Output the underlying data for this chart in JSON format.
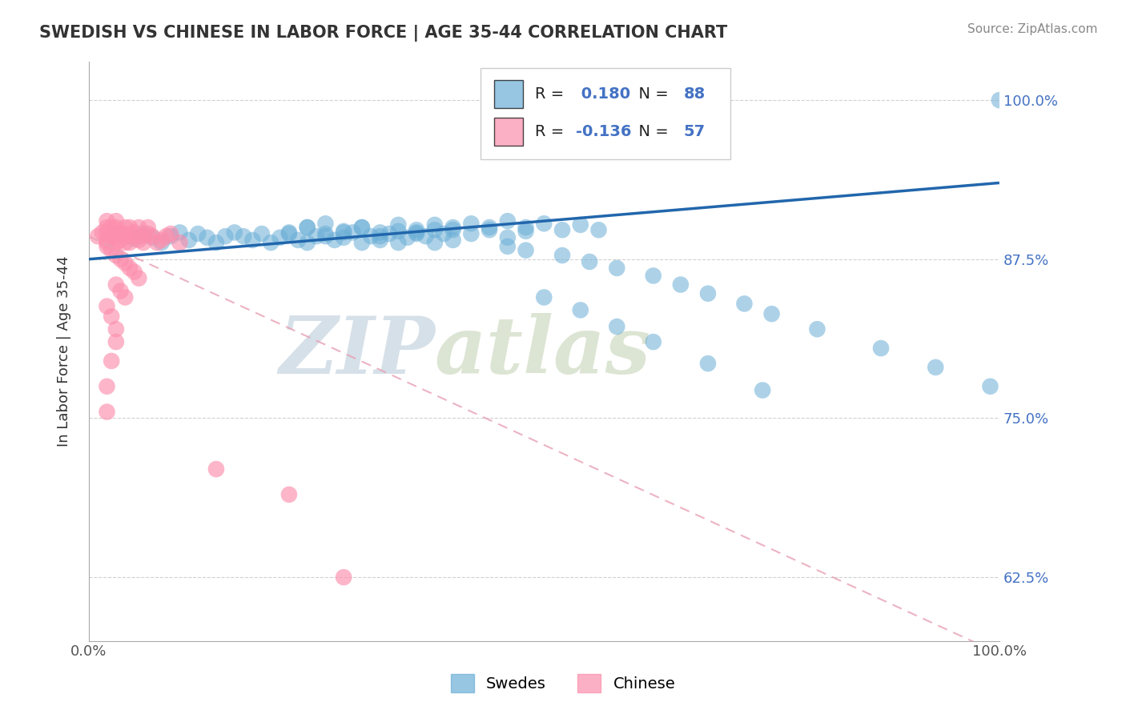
{
  "title": "SWEDISH VS CHINESE IN LABOR FORCE | AGE 35-44 CORRELATION CHART",
  "source": "Source: ZipAtlas.com",
  "ylabel": "In Labor Force | Age 35-44",
  "xlim": [
    0.0,
    1.0
  ],
  "ylim": [
    0.575,
    1.03
  ],
  "yticks": [
    0.625,
    0.75,
    0.875,
    1.0
  ],
  "ytick_labels": [
    "62.5%",
    "75.0%",
    "87.5%",
    "100.0%"
  ],
  "swedes_R": 0.18,
  "swedes_N": 88,
  "chinese_R": -0.136,
  "chinese_N": 57,
  "swedes_color": "#6baed6",
  "chinese_color": "#fc8fad",
  "swedes_trend_color": "#2166ac",
  "chinese_trend_color": "#e8a0b4",
  "legend_swedes": "Swedes",
  "legend_chinese": "Chinese",
  "watermark": "ZIPatlas",
  "watermark_color_zip": "#b8cfe0",
  "watermark_color_atlas": "#c8d8a8",
  "background_color": "#ffffff",
  "sw_trend_start_y": 0.875,
  "sw_trend_end_y": 0.935,
  "ch_trend_start_y": 0.893,
  "ch_trend_end_y": 0.565,
  "swedes_x": [
    0.05,
    0.06,
    0.07,
    0.08,
    0.09,
    0.1,
    0.11,
    0.12,
    0.13,
    0.14,
    0.15,
    0.16,
    0.17,
    0.18,
    0.19,
    0.2,
    0.21,
    0.22,
    0.23,
    0.24,
    0.25,
    0.26,
    0.27,
    0.28,
    0.29,
    0.3,
    0.31,
    0.32,
    0.33,
    0.34,
    0.35,
    0.36,
    0.37,
    0.38,
    0.39,
    0.4,
    0.22,
    0.24,
    0.26,
    0.28,
    0.3,
    0.32,
    0.34,
    0.36,
    0.38,
    0.4,
    0.42,
    0.44,
    0.46,
    0.48,
    0.24,
    0.26,
    0.28,
    0.3,
    0.32,
    0.34,
    0.36,
    0.38,
    0.4,
    0.42,
    0.44,
    0.46,
    0.48,
    0.5,
    0.52,
    0.54,
    0.56,
    0.46,
    0.48,
    0.52,
    0.55,
    0.58,
    0.62,
    0.65,
    0.68,
    0.72,
    0.75,
    0.8,
    0.87,
    0.93,
    0.99,
    1.0,
    0.5,
    0.54,
    0.58,
    0.62,
    0.68,
    0.74
  ],
  "swedes_y": [
    0.891,
    0.895,
    0.892,
    0.888,
    0.893,
    0.896,
    0.89,
    0.895,
    0.892,
    0.888,
    0.893,
    0.896,
    0.893,
    0.89,
    0.895,
    0.888,
    0.892,
    0.896,
    0.89,
    0.888,
    0.893,
    0.895,
    0.89,
    0.892,
    0.896,
    0.888,
    0.893,
    0.89,
    0.895,
    0.888,
    0.892,
    0.896,
    0.893,
    0.888,
    0.895,
    0.89,
    0.895,
    0.9,
    0.893,
    0.897,
    0.9,
    0.893,
    0.897,
    0.895,
    0.898,
    0.9,
    0.895,
    0.898,
    0.892,
    0.897,
    0.9,
    0.903,
    0.896,
    0.9,
    0.896,
    0.902,
    0.898,
    0.902,
    0.898,
    0.903,
    0.9,
    0.905,
    0.9,
    0.903,
    0.898,
    0.902,
    0.898,
    0.885,
    0.882,
    0.878,
    0.873,
    0.868,
    0.862,
    0.855,
    0.848,
    0.84,
    0.832,
    0.82,
    0.805,
    0.79,
    0.775,
    1.0,
    0.845,
    0.835,
    0.822,
    0.81,
    0.793,
    0.772
  ],
  "chinese_x": [
    0.01,
    0.015,
    0.02,
    0.02,
    0.02,
    0.02,
    0.02,
    0.025,
    0.025,
    0.03,
    0.03,
    0.03,
    0.03,
    0.03,
    0.035,
    0.035,
    0.04,
    0.04,
    0.04,
    0.04,
    0.045,
    0.045,
    0.05,
    0.05,
    0.055,
    0.055,
    0.06,
    0.06,
    0.065,
    0.065,
    0.07,
    0.075,
    0.08,
    0.085,
    0.09,
    0.1,
    0.02,
    0.025,
    0.03,
    0.035,
    0.04,
    0.045,
    0.05,
    0.055,
    0.03,
    0.035,
    0.04,
    0.02,
    0.025,
    0.03,
    0.03,
    0.025,
    0.02,
    0.02,
    0.14,
    0.22,
    0.28
  ],
  "chinese_y": [
    0.893,
    0.896,
    0.9,
    0.895,
    0.89,
    0.905,
    0.888,
    0.893,
    0.9,
    0.895,
    0.9,
    0.888,
    0.893,
    0.905,
    0.895,
    0.89,
    0.9,
    0.893,
    0.888,
    0.895,
    0.9,
    0.888,
    0.893,
    0.896,
    0.89,
    0.9,
    0.893,
    0.888,
    0.895,
    0.9,
    0.893,
    0.888,
    0.89,
    0.893,
    0.895,
    0.888,
    0.885,
    0.882,
    0.878,
    0.875,
    0.872,
    0.868,
    0.865,
    0.86,
    0.855,
    0.85,
    0.845,
    0.838,
    0.83,
    0.82,
    0.81,
    0.795,
    0.775,
    0.755,
    0.71,
    0.69,
    0.625
  ]
}
